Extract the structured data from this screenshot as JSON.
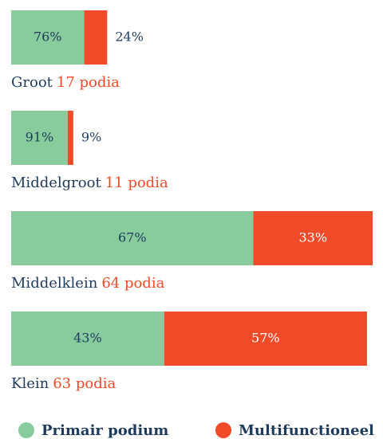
{
  "chart_data": {
    "type": "stacked-bar-horizontal",
    "categories": [
      "Groot",
      "Middelgroot",
      "Middelklein",
      "Klein"
    ],
    "counts": [
      17,
      11,
      64,
      63
    ],
    "count_labels": [
      "17 podia",
      "11 podia",
      "64 podia",
      "63 podia"
    ],
    "series": [
      {
        "name": "Primair podium",
        "color": "#88cc9e",
        "text_color": "#1e3a5c",
        "values": [
          76,
          91,
          67,
          43
        ],
        "value_labels": [
          "76%",
          "91%",
          "67%",
          "43%"
        ]
      },
      {
        "name": "Multifunctioneel",
        "color": "#f04b29",
        "text_color": "#ffffff",
        "values": [
          24,
          9,
          33,
          57
        ],
        "value_labels": [
          "24%",
          "9%",
          "33%",
          "57%"
        ]
      }
    ]
  }
}
